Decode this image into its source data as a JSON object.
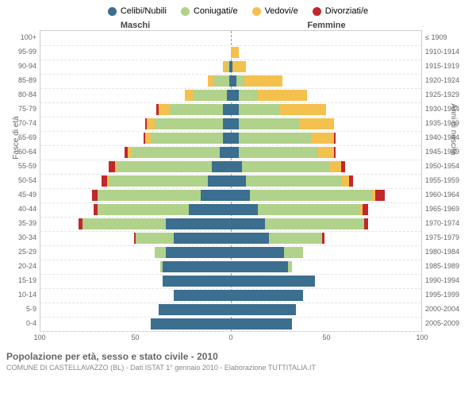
{
  "legend": [
    {
      "label": "Celibi/Nubili",
      "color": "#3b6e8f"
    },
    {
      "label": "Coniugati/e",
      "color": "#b0d28a"
    },
    {
      "label": "Vedovi/e",
      "color": "#f4c04e"
    },
    {
      "label": "Divorziati/e",
      "color": "#c1272d"
    }
  ],
  "headers": {
    "male": "Maschi",
    "female": "Femmine"
  },
  "axis_left_title": "Fasce di età",
  "axis_right_title": "Anni di nascita",
  "x_ticks": [
    100,
    50,
    0,
    50,
    100
  ],
  "x_max": 100,
  "footer_title": "Popolazione per età, sesso e stato civile - 2010",
  "footer_sub": "COMUNE DI CASTELLAVAZZO (BL) - Dati ISTAT 1° gennaio 2010 - Elaborazione TUTTITALIA.IT",
  "colors": {
    "celibi": "#3b6e8f",
    "coniugati": "#b0d28a",
    "vedovi": "#f4c04e",
    "divorziati": "#c1272d",
    "grid": "#e5e5e5",
    "center": "#999"
  },
  "rows": [
    {
      "age": "100+",
      "birth": "≤ 1909",
      "m": {
        "c": 0,
        "co": 0,
        "v": 0,
        "d": 0
      },
      "f": {
        "c": 0,
        "co": 0,
        "v": 0,
        "d": 0
      }
    },
    {
      "age": "95-99",
      "birth": "1910-1914",
      "m": {
        "c": 0,
        "co": 0,
        "v": 0,
        "d": 0
      },
      "f": {
        "c": 0,
        "co": 0,
        "v": 4,
        "d": 0
      }
    },
    {
      "age": "90-94",
      "birth": "1915-1919",
      "m": {
        "c": 1,
        "co": 1,
        "v": 2,
        "d": 0
      },
      "f": {
        "c": 1,
        "co": 0,
        "v": 7,
        "d": 0
      }
    },
    {
      "age": "85-89",
      "birth": "1920-1924",
      "m": {
        "c": 1,
        "co": 8,
        "v": 3,
        "d": 0
      },
      "f": {
        "c": 3,
        "co": 4,
        "v": 20,
        "d": 0
      }
    },
    {
      "age": "80-84",
      "birth": "1925-1929",
      "m": {
        "c": 2,
        "co": 18,
        "v": 4,
        "d": 0
      },
      "f": {
        "c": 4,
        "co": 10,
        "v": 26,
        "d": 0
      }
    },
    {
      "age": "75-79",
      "birth": "1930-1934",
      "m": {
        "c": 4,
        "co": 28,
        "v": 6,
        "d": 1
      },
      "f": {
        "c": 4,
        "co": 22,
        "v": 24,
        "d": 0
      }
    },
    {
      "age": "70-74",
      "birth": "1935-1939",
      "m": {
        "c": 4,
        "co": 36,
        "v": 4,
        "d": 1
      },
      "f": {
        "c": 4,
        "co": 32,
        "v": 18,
        "d": 0
      }
    },
    {
      "age": "65-69",
      "birth": "1940-1944",
      "m": {
        "c": 4,
        "co": 38,
        "v": 3,
        "d": 1
      },
      "f": {
        "c": 4,
        "co": 38,
        "v": 12,
        "d": 1
      }
    },
    {
      "age": "60-64",
      "birth": "1945-1949",
      "m": {
        "c": 6,
        "co": 46,
        "v": 2,
        "d": 2
      },
      "f": {
        "c": 4,
        "co": 42,
        "v": 8,
        "d": 1
      }
    },
    {
      "age": "55-59",
      "birth": "1950-1954",
      "m": {
        "c": 10,
        "co": 50,
        "v": 1,
        "d": 3
      },
      "f": {
        "c": 6,
        "co": 46,
        "v": 6,
        "d": 2
      }
    },
    {
      "age": "50-54",
      "birth": "1955-1959",
      "m": {
        "c": 12,
        "co": 52,
        "v": 1,
        "d": 3
      },
      "f": {
        "c": 8,
        "co": 50,
        "v": 4,
        "d": 2
      }
    },
    {
      "age": "45-49",
      "birth": "1960-1964",
      "m": {
        "c": 16,
        "co": 54,
        "v": 0,
        "d": 3
      },
      "f": {
        "c": 10,
        "co": 64,
        "v": 2,
        "d": 5
      }
    },
    {
      "age": "40-44",
      "birth": "1965-1969",
      "m": {
        "c": 22,
        "co": 48,
        "v": 0,
        "d": 2
      },
      "f": {
        "c": 14,
        "co": 54,
        "v": 1,
        "d": 3
      }
    },
    {
      "age": "35-39",
      "birth": "1970-1974",
      "m": {
        "c": 34,
        "co": 44,
        "v": 0,
        "d": 2
      },
      "f": {
        "c": 18,
        "co": 52,
        "v": 0,
        "d": 2
      }
    },
    {
      "age": "30-34",
      "birth": "1975-1979",
      "m": {
        "c": 30,
        "co": 20,
        "v": 0,
        "d": 1
      },
      "f": {
        "c": 20,
        "co": 28,
        "v": 0,
        "d": 1
      }
    },
    {
      "age": "25-29",
      "birth": "1980-1984",
      "m": {
        "c": 34,
        "co": 6,
        "v": 0,
        "d": 0
      },
      "f": {
        "c": 28,
        "co": 10,
        "v": 0,
        "d": 0
      }
    },
    {
      "age": "20-24",
      "birth": "1985-1989",
      "m": {
        "c": 36,
        "co": 1,
        "v": 0,
        "d": 0
      },
      "f": {
        "c": 30,
        "co": 2,
        "v": 0,
        "d": 0
      }
    },
    {
      "age": "15-19",
      "birth": "1990-1994",
      "m": {
        "c": 36,
        "co": 0,
        "v": 0,
        "d": 0
      },
      "f": {
        "c": 44,
        "co": 0,
        "v": 0,
        "d": 0
      }
    },
    {
      "age": "10-14",
      "birth": "1995-1999",
      "m": {
        "c": 30,
        "co": 0,
        "v": 0,
        "d": 0
      },
      "f": {
        "c": 38,
        "co": 0,
        "v": 0,
        "d": 0
      }
    },
    {
      "age": "5-9",
      "birth": "2000-2004",
      "m": {
        "c": 38,
        "co": 0,
        "v": 0,
        "d": 0
      },
      "f": {
        "c": 34,
        "co": 0,
        "v": 0,
        "d": 0
      }
    },
    {
      "age": "0-4",
      "birth": "2005-2009",
      "m": {
        "c": 42,
        "co": 0,
        "v": 0,
        "d": 0
      },
      "f": {
        "c": 32,
        "co": 0,
        "v": 0,
        "d": 0
      }
    }
  ]
}
